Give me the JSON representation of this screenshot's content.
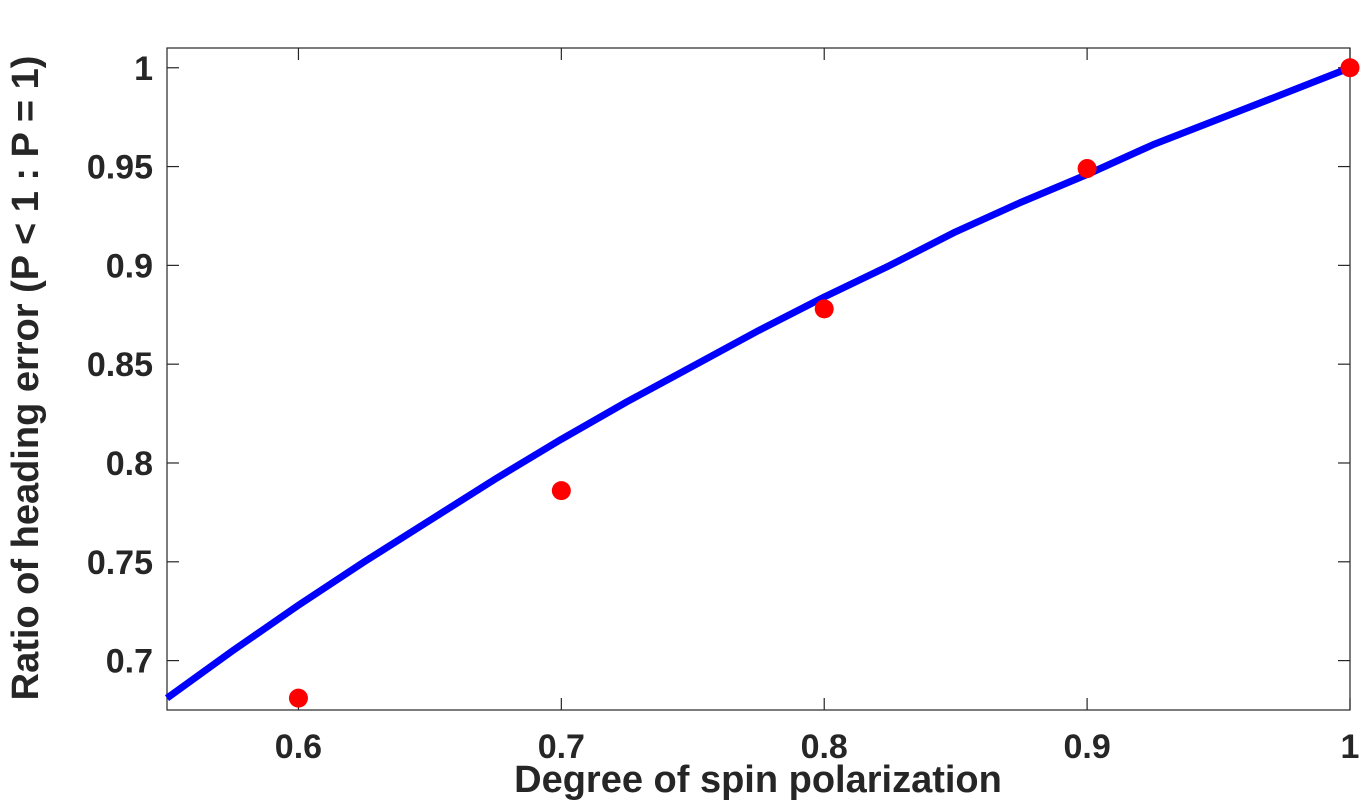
{
  "chart_data": {
    "type": "scatter",
    "title": "",
    "xlabel": "Degree of spin polarization",
    "ylabel": "Ratio of heading error (P < 1 : P = 1)",
    "xlim": [
      0.55,
      1.0
    ],
    "ylim": [
      0.675,
      1.01
    ],
    "x_ticks": [
      0.6,
      0.7,
      0.8,
      0.9,
      1.0
    ],
    "x_tick_labels": [
      "0.6",
      "0.7",
      "0.8",
      "0.9",
      "1"
    ],
    "y_ticks": [
      0.7,
      0.75,
      0.8,
      0.85,
      0.9,
      0.95,
      1.0
    ],
    "y_tick_labels": [
      "0.7",
      "0.75",
      "0.8",
      "0.85",
      "0.9",
      "0.95",
      "1"
    ],
    "grid": false,
    "series": [
      {
        "kind": "scatter",
        "color": "#ff0000",
        "x": [
          0.6,
          0.7,
          0.8,
          0.9,
          1.0
        ],
        "y": [
          0.681,
          0.786,
          0.878,
          0.949,
          1.0
        ]
      },
      {
        "kind": "line",
        "color": "#0000ff",
        "x": [
          0.55,
          0.575,
          0.6,
          0.625,
          0.65,
          0.675,
          0.7,
          0.725,
          0.75,
          0.775,
          0.8,
          0.825,
          0.85,
          0.875,
          0.9,
          0.925,
          0.95,
          0.975,
          1.0
        ],
        "y": [
          0.681,
          0.705,
          0.728,
          0.75,
          0.771,
          0.792,
          0.812,
          0.831,
          0.849,
          0.867,
          0.884,
          0.9,
          0.917,
          0.932,
          0.946,
          0.961,
          0.974,
          0.987,
          1.0
        ]
      }
    ]
  }
}
